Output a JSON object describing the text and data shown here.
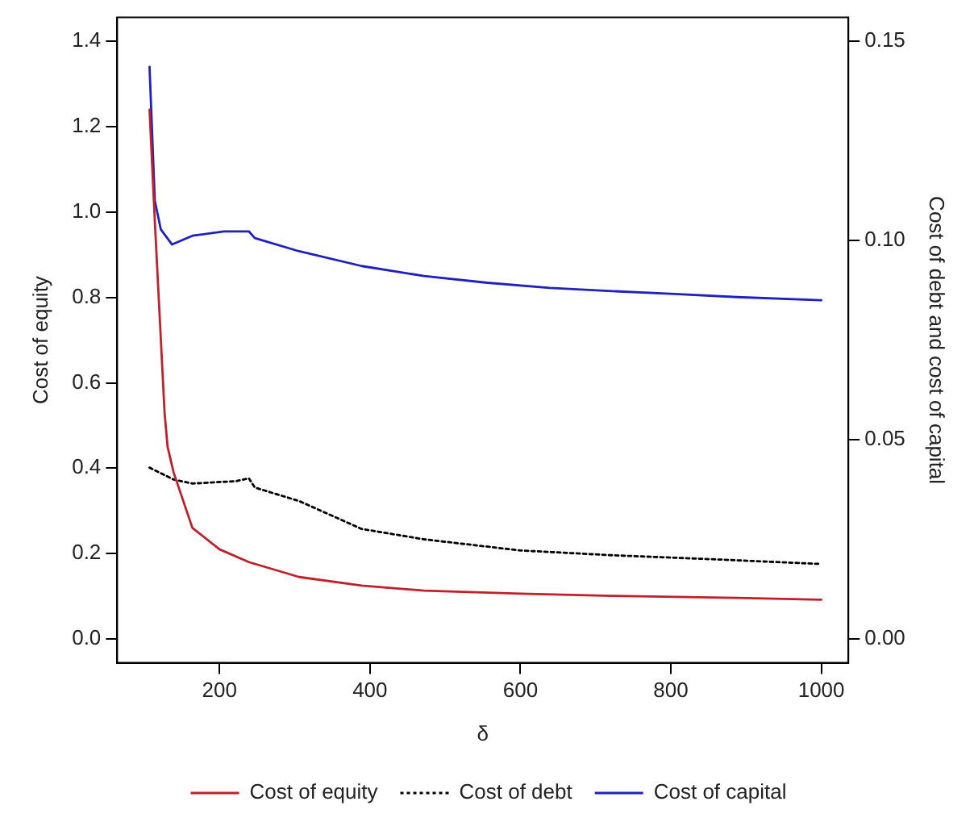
{
  "chart_data": {
    "type": "line",
    "xlabel": "δ",
    "ylabel": "Cost of equity",
    "y2label": "Cost of debt and cost of capital",
    "xlim": [
      64,
      1036
    ],
    "xticks": [
      200,
      400,
      600,
      800,
      1000
    ],
    "ylim": [
      -0.056,
      1.456
    ],
    "yticks": [
      {
        "value": 0,
        "label": "0.0"
      },
      {
        "value": 0.2,
        "label": "0.2"
      },
      {
        "value": 0.4,
        "label": "0.4"
      },
      {
        "value": 0.6,
        "label": "0.6"
      },
      {
        "value": 0.8,
        "label": "0.8"
      },
      {
        "value": 1,
        "label": "1.0"
      },
      {
        "value": 1.2,
        "label": "1.2"
      },
      {
        "value": 1.4,
        "label": "1.4"
      }
    ],
    "y2lim": [
      -0.006,
      0.156
    ],
    "y2ticks": [
      {
        "value": 0,
        "label": "0.00"
      },
      {
        "value": 0.05,
        "label": "0.05"
      },
      {
        "value": 0.1,
        "label": "0.10"
      },
      {
        "value": 0.15,
        "label": "0.15"
      }
    ],
    "grid": false,
    "legend": "bottom",
    "marker": "none",
    "series": [
      {
        "name": "Cost of equity",
        "color": "#c0202a",
        "line_style": "solid",
        "x": [
          107,
          114,
          127,
          131,
          139,
          164,
          200,
          239,
          306,
          389,
          472,
          600,
          722,
          888,
          1000
        ],
        "values": [
          1.24,
          0.98,
          0.53,
          0.45,
          0.39,
          0.26,
          0.21,
          0.18,
          0.145,
          0.125,
          0.113,
          0.106,
          0.101,
          0.096,
          0.092
        ]
      },
      {
        "name": "Cost of debt",
        "color": "#000000",
        "line_style": "dotted",
        "axis": "y2",
        "x": [
          107,
          139,
          164,
          222,
          239,
          247,
          306,
          389,
          472,
          600,
          722,
          855,
          1000
        ],
        "values": [
          0.043,
          0.04,
          0.039,
          0.0396,
          0.0403,
          0.038,
          0.0346,
          0.0276,
          0.025,
          0.0222,
          0.021,
          0.02,
          0.0188
        ]
      },
      {
        "name": "Cost of capital",
        "color": "#2020c0",
        "line_style": "solid",
        "axis": "y2",
        "x": [
          107,
          114,
          122,
          137,
          164,
          206,
          239,
          247,
          306,
          389,
          472,
          556,
          639,
          722,
          805,
          888,
          1000
        ],
        "values": [
          0.1436,
          0.11,
          0.1028,
          0.099,
          0.1012,
          0.1023,
          0.1023,
          0.1006,
          0.0973,
          0.0936,
          0.0911,
          0.0894,
          0.0881,
          0.0873,
          0.0866,
          0.0858,
          0.085
        ]
      }
    ]
  }
}
